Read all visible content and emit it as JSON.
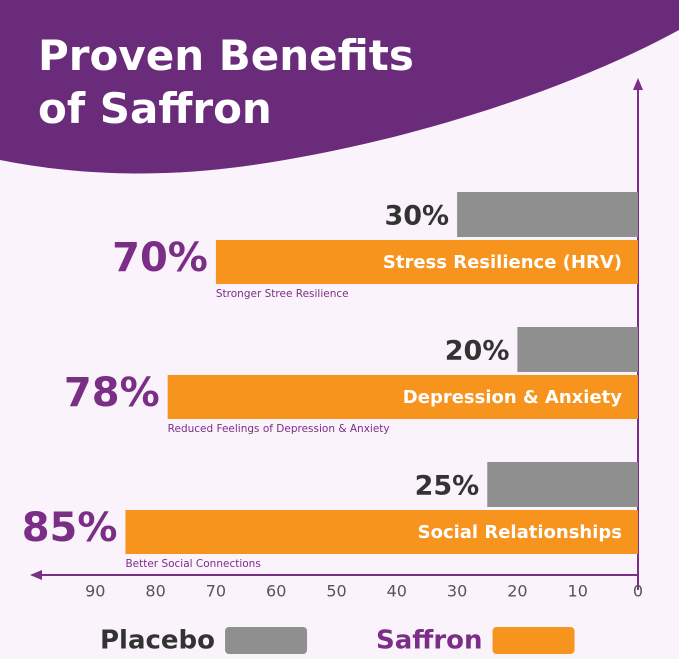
{
  "chart_data": {
    "type": "bar",
    "orientation": "horizontal",
    "title": "Proven Benefits of Saffron",
    "categories": [
      "Stress Resilience (HRV)",
      "Depression & Anxiety",
      "Social Relationships"
    ],
    "descriptions": [
      "Stronger Stree Resilience",
      "Reduced Feelings of Depression & Anxiety",
      "Better Social Connections"
    ],
    "series": [
      {
        "name": "Placebo",
        "color": "#8f8f8f",
        "values": [
          30,
          20,
          25
        ],
        "value_labels": [
          "30%",
          "20%",
          "25%"
        ]
      },
      {
        "name": "Saffron",
        "color": "#f7941d",
        "values": [
          70,
          78,
          85
        ],
        "value_labels": [
          "70%",
          "78%",
          "85%"
        ]
      }
    ],
    "xlim": [
      0,
      100
    ],
    "xticks": [
      90,
      80,
      70,
      60,
      50,
      40,
      30,
      20,
      10,
      0
    ],
    "x_reversed": true,
    "legend": "bottom"
  }
}
